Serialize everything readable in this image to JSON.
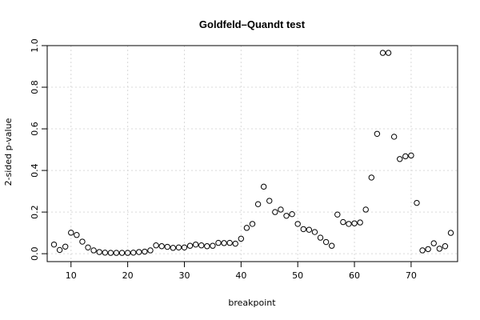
{
  "chart_data": {
    "type": "scatter",
    "title": "Goldfeld–Quandt test",
    "xlabel": "breakpoint",
    "ylabel": "2-sided p-value",
    "xlim": [
      5.8,
      78.2
    ],
    "ylim": [
      -0.038,
      1.0
    ],
    "xticks": [
      10,
      20,
      30,
      40,
      50,
      60,
      70
    ],
    "yticks": [
      0.0,
      0.2,
      0.4,
      0.6,
      0.8,
      1.0
    ],
    "ytick_labels": [
      "0.0",
      "0.2",
      "0.4",
      "0.6",
      "0.8",
      "1.0"
    ],
    "grid": true,
    "marker": "open-circle",
    "x": [
      7,
      8,
      9,
      10,
      11,
      12,
      13,
      14,
      15,
      16,
      17,
      18,
      19,
      20,
      21,
      22,
      23,
      24,
      25,
      26,
      27,
      28,
      29,
      30,
      31,
      32,
      33,
      34,
      35,
      36,
      37,
      38,
      39,
      40,
      41,
      42,
      43,
      44,
      45,
      46,
      47,
      48,
      49,
      50,
      51,
      52,
      53,
      54,
      55,
      56,
      57,
      58,
      59,
      60,
      61,
      62,
      63,
      64,
      65,
      66,
      67,
      68,
      69,
      70,
      71,
      72,
      73,
      74,
      75,
      76,
      77
    ],
    "y": [
      0.044,
      0.018,
      0.034,
      0.101,
      0.09,
      0.058,
      0.03,
      0.016,
      0.008,
      0.005,
      0.004,
      0.004,
      0.004,
      0.004,
      0.005,
      0.008,
      0.01,
      0.016,
      0.04,
      0.036,
      0.033,
      0.028,
      0.03,
      0.03,
      0.038,
      0.044,
      0.04,
      0.036,
      0.038,
      0.052,
      0.051,
      0.052,
      0.048,
      0.072,
      0.124,
      0.143,
      0.238,
      0.322,
      0.254,
      0.2,
      0.212,
      0.182,
      0.19,
      0.143,
      0.118,
      0.115,
      0.104,
      0.077,
      0.056,
      0.038,
      0.188,
      0.152,
      0.143,
      0.146,
      0.15,
      0.212,
      0.366,
      0.576,
      0.965,
      0.965,
      0.562,
      0.455,
      0.468,
      0.472,
      0.244,
      0.016,
      0.022,
      0.05,
      0.024,
      0.036,
      0.1
    ]
  }
}
